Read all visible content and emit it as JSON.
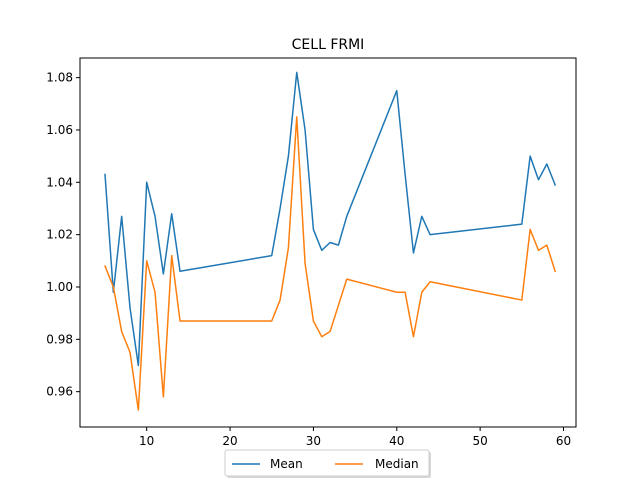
{
  "chart_data": {
    "type": "line",
    "title": "CELL FRMI",
    "xlabel": "",
    "ylabel": "",
    "xlim": [
      2,
      61.5
    ],
    "ylim": [
      0.9465,
      1.0875
    ],
    "xticks": [
      10,
      20,
      30,
      40,
      50,
      60
    ],
    "xtick_labels": [
      "10",
      "20",
      "30",
      "40",
      "50",
      "60"
    ],
    "yticks": [
      0.96,
      0.98,
      1.0,
      1.02,
      1.04,
      1.06,
      1.08
    ],
    "ytick_labels": [
      "0.96",
      "0.98",
      "1.00",
      "1.02",
      "1.04",
      "1.06",
      "1.08"
    ],
    "grid": false,
    "legend": "lower center, outside below axes, 2 columns",
    "x": [
      5,
      6,
      7,
      8,
      9,
      10,
      11,
      12,
      13,
      14,
      25,
      26,
      27,
      28,
      29,
      30,
      31,
      32,
      33,
      34,
      40,
      41,
      42,
      43,
      44,
      55,
      56,
      57,
      58,
      59
    ],
    "series": [
      {
        "name": "Mean",
        "color": "#1f77b4",
        "values": [
          1.043,
          0.998,
          1.027,
          0.992,
          0.97,
          1.04,
          1.027,
          1.005,
          1.028,
          1.006,
          1.012,
          1.03,
          1.05,
          1.082,
          1.06,
          1.022,
          1.014,
          1.017,
          1.016,
          1.027,
          1.075,
          1.043,
          1.013,
          1.027,
          1.02,
          1.024,
          1.05,
          1.041,
          1.047,
          1.039
        ]
      },
      {
        "name": "Median",
        "color": "#ff7f0e",
        "values": [
          1.008,
          1.0,
          0.983,
          0.975,
          0.953,
          1.01,
          0.998,
          0.958,
          1.012,
          0.987,
          0.987,
          0.995,
          1.015,
          1.065,
          1.009,
          0.987,
          0.981,
          0.983,
          0.993,
          1.003,
          0.998,
          0.998,
          0.981,
          0.998,
          1.002,
          0.995,
          1.022,
          1.014,
          1.016,
          1.006
        ]
      }
    ]
  }
}
